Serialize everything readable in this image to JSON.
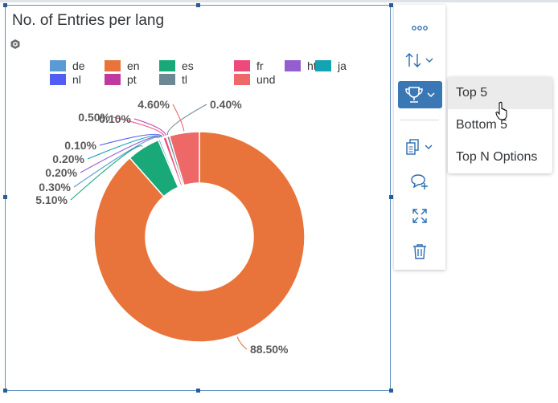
{
  "widget": {
    "title": "No. of Entries per lang",
    "cube_icon": "cube-icon"
  },
  "legend": [
    {
      "label": "de",
      "color": "#5b9bd5"
    },
    {
      "label": "en",
      "color": "#e8743b"
    },
    {
      "label": "es",
      "color": "#19a979"
    },
    {
      "label": "fr",
      "color": "#ed4a7b"
    },
    {
      "label": "ht",
      "color": "#945ecf"
    },
    {
      "label": "ja",
      "color": "#13a4b4"
    },
    {
      "label": "nl",
      "color": "#525df4"
    },
    {
      "label": "pt",
      "color": "#bf399e"
    },
    {
      "label": "tl",
      "color": "#6c8893"
    },
    {
      "label": "und",
      "color": "#ee6868"
    }
  ],
  "chart_data": {
    "type": "pie",
    "donut": true,
    "title": "No. of Entries per lang",
    "categories": [
      "en",
      "es",
      "de",
      "ht",
      "ja",
      "nl",
      "fr",
      "pt",
      "tl",
      "und"
    ],
    "values": [
      88.5,
      5.1,
      0.3,
      0.2,
      0.2,
      0.1,
      0.5,
      0.1,
      0.4,
      4.6
    ],
    "labels": [
      {
        "category": "en",
        "text": "88.50%"
      },
      {
        "category": "es",
        "text": "5.10%"
      },
      {
        "category": "de",
        "text": "0.30%"
      },
      {
        "category": "ht",
        "text": "0.20%"
      },
      {
        "category": "ja",
        "text": "0.20%"
      },
      {
        "category": "nl",
        "text": "0.10%"
      },
      {
        "category": "fr",
        "text": "0.50%"
      },
      {
        "category": "pt",
        "text": "0.10%"
      },
      {
        "category": "tl",
        "text": "0.40%"
      },
      {
        "category": "und",
        "text": "4.60%"
      }
    ],
    "legend_position": "top"
  },
  "toolbar": {
    "items": [
      {
        "name": "more-options-button",
        "icon": "ellipsis-icon"
      },
      {
        "name": "sort-button",
        "icon": "sort-icon"
      },
      {
        "name": "rank-button",
        "icon": "trophy-icon",
        "active": true
      },
      {
        "name": "copy-button",
        "icon": "copy-icon"
      },
      {
        "name": "add-comment-button",
        "icon": "comment-add-icon"
      },
      {
        "name": "fullscreen-button",
        "icon": "expand-icon"
      },
      {
        "name": "delete-button",
        "icon": "trash-icon"
      }
    ]
  },
  "rank_menu": {
    "items": [
      {
        "label": "Top 5",
        "hover": true
      },
      {
        "label": "Bottom 5"
      },
      {
        "label": "Top N Options"
      }
    ]
  }
}
